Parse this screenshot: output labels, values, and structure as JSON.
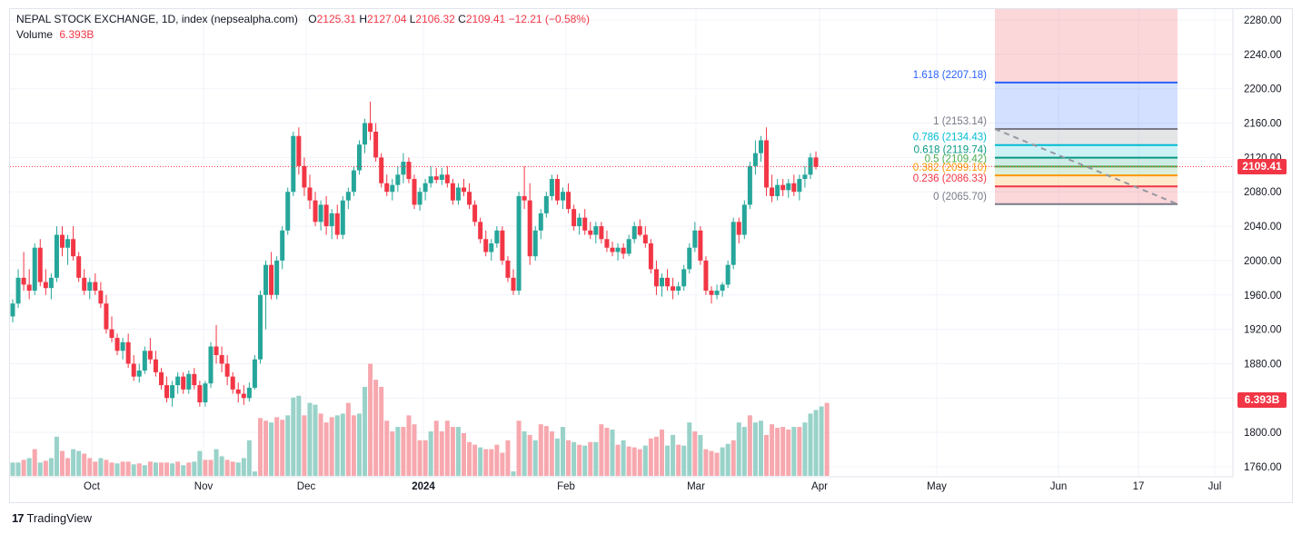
{
  "header": {
    "title": "NEPAL STOCK EXCHANGE, 1D, index (nepsealpha.com)",
    "ohlc": [
      {
        "key": "O",
        "value": "2125.31"
      },
      {
        "key": "H",
        "value": "2127.04"
      },
      {
        "key": "L",
        "value": "2106.32"
      },
      {
        "key": "C",
        "value": "2109.41"
      }
    ],
    "change": "−12.21 (−0.58%)",
    "volume_label": "Volume",
    "volume_value": "6.393B"
  },
  "badges": {
    "last_price": "2109.41",
    "volume": "6.393B"
  },
  "footer": {
    "brand_mark": "17",
    "brand": "TradingView"
  },
  "colors": {
    "up": "#26a69a",
    "down": "#f23645",
    "vol_up": "#99d2c9",
    "vol_down": "#f7a8ae",
    "grid": "#f0f3fa"
  },
  "chart_data": {
    "type": "candlestick",
    "title": "NEPAL STOCK EXCHANGE, 1D",
    "price_axis": {
      "ticks": [
        1760,
        1800,
        1840,
        1880,
        1920,
        1960,
        2000,
        2040,
        2080,
        2120,
        2160,
        2200,
        2240,
        2280
      ],
      "tick_labels": [
        "1760.00",
        "1800.00",
        "1840.00",
        "1880.00",
        "1920.00",
        "1960.00",
        "2000.00",
        "2040.00",
        "2080.00",
        "2120.00",
        "2160.00",
        "2200.00",
        "2240.00",
        "2280.00"
      ]
    },
    "time_axis": {
      "labels": [
        "Oct",
        "Nov",
        "Dec",
        "2024",
        "Feb",
        "Mar",
        "Apr",
        "May",
        "Jun",
        "17",
        "Jul"
      ],
      "bold": [
        false,
        false,
        false,
        true,
        false,
        false,
        false,
        false,
        false,
        false,
        false
      ]
    },
    "ohlc_series": [
      [
        1935,
        1955,
        1928,
        1950
      ],
      [
        1950,
        1990,
        1945,
        1980
      ],
      [
        1980,
        2010,
        1965,
        1972
      ],
      [
        1972,
        1990,
        1955,
        1965
      ],
      [
        1965,
        2020,
        1960,
        2015
      ],
      [
        2015,
        2025,
        1970,
        1975
      ],
      [
        1975,
        1990,
        1960,
        1968
      ],
      [
        1968,
        1985,
        1955,
        1980
      ],
      [
        1980,
        2040,
        1975,
        2030
      ],
      [
        2030,
        2040,
        2005,
        2015
      ],
      [
        2015,
        2030,
        1995,
        2025
      ],
      [
        2025,
        2040,
        2000,
        2005
      ],
      [
        2005,
        2010,
        1975,
        1980
      ],
      [
        1980,
        1990,
        1960,
        1965
      ],
      [
        1965,
        1980,
        1955,
        1975
      ],
      [
        1975,
        1985,
        1960,
        1965
      ],
      [
        1965,
        1975,
        1945,
        1950
      ],
      [
        1950,
        1960,
        1915,
        1920
      ],
      [
        1920,
        1935,
        1905,
        1910
      ],
      [
        1910,
        1915,
        1890,
        1895
      ],
      [
        1895,
        1910,
        1885,
        1905
      ],
      [
        1905,
        1915,
        1875,
        1880
      ],
      [
        1880,
        1890,
        1860,
        1865
      ],
      [
        1865,
        1880,
        1858,
        1872
      ],
      [
        1872,
        1900,
        1868,
        1895
      ],
      [
        1895,
        1910,
        1880,
        1885
      ],
      [
        1885,
        1895,
        1865,
        1870
      ],
      [
        1870,
        1875,
        1850,
        1855
      ],
      [
        1855,
        1865,
        1835,
        1840
      ],
      [
        1840,
        1860,
        1830,
        1855
      ],
      [
        1855,
        1870,
        1845,
        1865
      ],
      [
        1865,
        1870,
        1845,
        1850
      ],
      [
        1850,
        1872,
        1845,
        1868
      ],
      [
        1868,
        1875,
        1850,
        1855
      ],
      [
        1855,
        1860,
        1830,
        1835
      ],
      [
        1835,
        1860,
        1830,
        1857
      ],
      [
        1857,
        1905,
        1852,
        1900
      ],
      [
        1900,
        1925,
        1880,
        1890
      ],
      [
        1890,
        1900,
        1870,
        1880
      ],
      [
        1880,
        1890,
        1855,
        1865
      ],
      [
        1865,
        1870,
        1845,
        1850
      ],
      [
        1850,
        1858,
        1835,
        1845
      ],
      [
        1845,
        1855,
        1832,
        1840
      ],
      [
        1840,
        1858,
        1836,
        1852
      ],
      [
        1852,
        1890,
        1850,
        1885
      ],
      [
        1885,
        1965,
        1880,
        1960
      ],
      [
        1960,
        2000,
        1920,
        1995
      ],
      [
        1995,
        2010,
        1955,
        1960
      ],
      [
        1960,
        2005,
        1955,
        2000
      ],
      [
        2000,
        2040,
        1990,
        2035
      ],
      [
        2035,
        2085,
        2030,
        2080
      ],
      [
        2080,
        2150,
        2075,
        2145
      ],
      [
        2145,
        2155,
        2100,
        2110
      ],
      [
        2110,
        2120,
        2075,
        2085
      ],
      [
        2085,
        2100,
        2060,
        2070
      ],
      [
        2070,
        2080,
        2040,
        2045
      ],
      [
        2045,
        2070,
        2035,
        2065
      ],
      [
        2065,
        2075,
        2030,
        2040
      ],
      [
        2040,
        2060,
        2025,
        2055
      ],
      [
        2055,
        2065,
        2025,
        2030
      ],
      [
        2030,
        2075,
        2025,
        2070
      ],
      [
        2070,
        2085,
        2060,
        2080
      ],
      [
        2080,
        2110,
        2075,
        2105
      ],
      [
        2105,
        2140,
        2100,
        2135
      ],
      [
        2135,
        2165,
        2125,
        2160
      ],
      [
        2160,
        2185,
        2140,
        2150
      ],
      [
        2150,
        2160,
        2115,
        2120
      ],
      [
        2120,
        2125,
        2085,
        2090
      ],
      [
        2090,
        2100,
        2075,
        2080
      ],
      [
        2080,
        2095,
        2070,
        2088
      ],
      [
        2088,
        2110,
        2080,
        2100
      ],
      [
        2100,
        2125,
        2090,
        2115
      ],
      [
        2115,
        2120,
        2090,
        2095
      ],
      [
        2095,
        2100,
        2060,
        2065
      ],
      [
        2065,
        2085,
        2058,
        2080
      ],
      [
        2080,
        2095,
        2070,
        2090
      ],
      [
        2090,
        2110,
        2085,
        2098
      ],
      [
        2098,
        2108,
        2090,
        2094
      ],
      [
        2094,
        2108,
        2088,
        2100
      ],
      [
        2100,
        2110,
        2085,
        2090
      ],
      [
        2090,
        2095,
        2065,
        2070
      ],
      [
        2070,
        2090,
        2065,
        2085
      ],
      [
        2085,
        2095,
        2075,
        2080
      ],
      [
        2080,
        2090,
        2060,
        2065
      ],
      [
        2065,
        2070,
        2040,
        2045
      ],
      [
        2045,
        2050,
        2020,
        2025
      ],
      [
        2025,
        2035,
        2005,
        2010
      ],
      [
        2010,
        2025,
        2000,
        2020
      ],
      [
        2020,
        2040,
        2015,
        2035
      ],
      [
        2035,
        2040,
        1995,
        2000
      ],
      [
        2000,
        2005,
        1975,
        1980
      ],
      [
        1980,
        1990,
        1960,
        1965
      ],
      [
        1965,
        2080,
        1960,
        2075
      ],
      [
        2075,
        2110,
        2060,
        2070
      ],
      [
        2070,
        2090,
        1995,
        2005
      ],
      [
        2005,
        2040,
        2000,
        2035
      ],
      [
        2035,
        2060,
        2025,
        2055
      ],
      [
        2055,
        2080,
        2050,
        2075
      ],
      [
        2075,
        2100,
        2070,
        2095
      ],
      [
        2095,
        2100,
        2065,
        2070
      ],
      [
        2070,
        2085,
        2060,
        2080
      ],
      [
        2080,
        2090,
        2055,
        2060
      ],
      [
        2060,
        2065,
        2035,
        2040
      ],
      [
        2040,
        2055,
        2030,
        2050
      ],
      [
        2050,
        2060,
        2030,
        2035
      ],
      [
        2035,
        2045,
        2025,
        2030
      ],
      [
        2030,
        2045,
        2020,
        2040
      ],
      [
        2040,
        2045,
        2020,
        2025
      ],
      [
        2025,
        2035,
        2010,
        2015
      ],
      [
        2015,
        2022,
        2005,
        2010
      ],
      [
        2010,
        2020,
        2000,
        2015
      ],
      [
        2015,
        2020,
        2002,
        2008
      ],
      [
        2008,
        2030,
        2005,
        2025
      ],
      [
        2025,
        2045,
        2020,
        2040
      ],
      [
        2040,
        2048,
        2028,
        2030
      ],
      [
        2030,
        2040,
        2015,
        2020
      ],
      [
        2020,
        2025,
        1985,
        1990
      ],
      [
        1990,
        2000,
        1960,
        1970
      ],
      [
        1970,
        1985,
        1958,
        1980
      ],
      [
        1980,
        1990,
        1965,
        1970
      ],
      [
        1970,
        1980,
        1955,
        1965
      ],
      [
        1965,
        1975,
        1960,
        1970
      ],
      [
        1970,
        1995,
        1965,
        1990
      ],
      [
        1990,
        2020,
        1985,
        2015
      ],
      [
        2015,
        2045,
        2010,
        2035
      ],
      [
        2035,
        2040,
        1995,
        2000
      ],
      [
        2000,
        2005,
        1960,
        1965
      ],
      [
        1965,
        1970,
        1950,
        1960
      ],
      [
        1960,
        1972,
        1955,
        1965
      ],
      [
        1965,
        1975,
        1958,
        1972
      ],
      [
        1972,
        2000,
        1968,
        1995
      ],
      [
        1995,
        2050,
        1990,
        2045
      ],
      [
        2045,
        2050,
        2020,
        2030
      ],
      [
        2030,
        2070,
        2025,
        2065
      ],
      [
        2065,
        2115,
        2060,
        2110
      ],
      [
        2110,
        2140,
        2100,
        2125
      ],
      [
        2125,
        2145,
        2115,
        2140
      ],
      [
        2140,
        2155,
        2075,
        2085
      ],
      [
        2085,
        2100,
        2068,
        2075
      ],
      [
        2075,
        2095,
        2070,
        2088
      ],
      [
        2088,
        2095,
        2075,
        2082
      ],
      [
        2082,
        2095,
        2073,
        2090
      ],
      [
        2090,
        2100,
        2075,
        2080
      ],
      [
        2080,
        2100,
        2070,
        2095
      ],
      [
        2095,
        2110,
        2085,
        2100
      ],
      [
        2100,
        2125,
        2095,
        2120
      ],
      [
        2120,
        2127,
        2106,
        2109
      ]
    ],
    "volume_series": [
      [
        15,
        1
      ],
      [
        15,
        1
      ],
      [
        18,
        0
      ],
      [
        20,
        1
      ],
      [
        30,
        0
      ],
      [
        15,
        1
      ],
      [
        17,
        0
      ],
      [
        20,
        1
      ],
      [
        44,
        1
      ],
      [
        28,
        0
      ],
      [
        20,
        0
      ],
      [
        30,
        1
      ],
      [
        28,
        1
      ],
      [
        25,
        0
      ],
      [
        20,
        0
      ],
      [
        16,
        0
      ],
      [
        20,
        1
      ],
      [
        18,
        0
      ],
      [
        15,
        0
      ],
      [
        14,
        1
      ],
      [
        16,
        0
      ],
      [
        16,
        0
      ],
      [
        13,
        1
      ],
      [
        14,
        0
      ],
      [
        12,
        1
      ],
      [
        16,
        0
      ],
      [
        15,
        1
      ],
      [
        15,
        0
      ],
      [
        15,
        0
      ],
      [
        14,
        1
      ],
      [
        16,
        0
      ],
      [
        12,
        1
      ],
      [
        15,
        0
      ],
      [
        16,
        1
      ],
      [
        28,
        1
      ],
      [
        18,
        0
      ],
      [
        18,
        0
      ],
      [
        30,
        1
      ],
      [
        22,
        1
      ],
      [
        18,
        0
      ],
      [
        16,
        0
      ],
      [
        15,
        1
      ],
      [
        20,
        1
      ],
      [
        40,
        1
      ],
      [
        5,
        1
      ],
      [
        65,
        0
      ],
      [
        62,
        0
      ],
      [
        60,
        1
      ],
      [
        66,
        0
      ],
      [
        63,
        0
      ],
      [
        68,
        1
      ],
      [
        88,
        1
      ],
      [
        90,
        1
      ],
      [
        68,
        0
      ],
      [
        82,
        1
      ],
      [
        80,
        1
      ],
      [
        70,
        0
      ],
      [
        60,
        0
      ],
      [
        66,
        0
      ],
      [
        68,
        1
      ],
      [
        70,
        1
      ],
      [
        82,
        0
      ],
      [
        68,
        0
      ],
      [
        70,
        1
      ],
      [
        100,
        1
      ],
      [
        126,
        0
      ],
      [
        108,
        0
      ],
      [
        100,
        0
      ],
      [
        62,
        0
      ],
      [
        50,
        0
      ],
      [
        55,
        1
      ],
      [
        55,
        0
      ],
      [
        68,
        0
      ],
      [
        58,
        0
      ],
      [
        40,
        0
      ],
      [
        40,
        0
      ],
      [
        50,
        1
      ],
      [
        62,
        0
      ],
      [
        50,
        0
      ],
      [
        62,
        0
      ],
      [
        55,
        0
      ],
      [
        55,
        1
      ],
      [
        48,
        0
      ],
      [
        38,
        0
      ],
      [
        35,
        0
      ],
      [
        32,
        1
      ],
      [
        30,
        0
      ],
      [
        30,
        0
      ],
      [
        35,
        0
      ],
      [
        26,
        0
      ],
      [
        40,
        0
      ],
      [
        5,
        1
      ],
      [
        62,
        0
      ],
      [
        50,
        1
      ],
      [
        46,
        0
      ],
      [
        40,
        1
      ],
      [
        58,
        0
      ],
      [
        56,
        0
      ],
      [
        50,
        0
      ],
      [
        42,
        1
      ],
      [
        55,
        1
      ],
      [
        40,
        0
      ],
      [
        38,
        1
      ],
      [
        35,
        0
      ],
      [
        34,
        1
      ],
      [
        38,
        0
      ],
      [
        38,
        1
      ],
      [
        58,
        0
      ],
      [
        54,
        0
      ],
      [
        52,
        1
      ],
      [
        35,
        0
      ],
      [
        40,
        1
      ],
      [
        33,
        0
      ],
      [
        32,
        0
      ],
      [
        30,
        0
      ],
      [
        34,
        1
      ],
      [
        42,
        0
      ],
      [
        44,
        0
      ],
      [
        52,
        0
      ],
      [
        34,
        1
      ],
      [
        46,
        1
      ],
      [
        35,
        0
      ],
      [
        34,
        1
      ],
      [
        60,
        1
      ],
      [
        50,
        0
      ],
      [
        46,
        1
      ],
      [
        30,
        0
      ],
      [
        28,
        0
      ],
      [
        26,
        0
      ],
      [
        32,
        1
      ],
      [
        36,
        1
      ],
      [
        40,
        0
      ],
      [
        60,
        1
      ],
      [
        55,
        1
      ],
      [
        68,
        0
      ],
      [
        60,
        1
      ],
      [
        62,
        1
      ],
      [
        46,
        0
      ],
      [
        58,
        0
      ],
      [
        54,
        0
      ],
      [
        55,
        0
      ],
      [
        52,
        0
      ],
      [
        55,
        1
      ],
      [
        55,
        0
      ],
      [
        60,
        1
      ],
      [
        70,
        1
      ],
      [
        74,
        1
      ],
      [
        78,
        1
      ],
      [
        82,
        0
      ]
    ],
    "volume_max_label": "6.393B",
    "fibonacci": [
      {
        "ratio": "1.618",
        "value": 2207.18,
        "label": "1.618 (2207.18)",
        "color": "#2962ff"
      },
      {
        "ratio": "1",
        "value": 2153.14,
        "label": "1 (2153.14)",
        "color": "#787b86"
      },
      {
        "ratio": "0.786",
        "value": 2134.43,
        "label": "0.786 (2134.43)",
        "color": "#00bcd4"
      },
      {
        "ratio": "0.618",
        "value": 2119.74,
        "label": "0.618 (2119.74)",
        "color": "#089981"
      },
      {
        "ratio": "0.5",
        "value": 2109.42,
        "label": "0.5 (2109.42)",
        "color": "#4caf50"
      },
      {
        "ratio": "0.382",
        "value": 2099.1,
        "label": "0.382 (2099.10)",
        "color": "#ff9800"
      },
      {
        "ratio": "0.236",
        "value": 2086.33,
        "label": "0.236 (2086.33)",
        "color": "#f23645"
      },
      {
        "ratio": "0",
        "value": 2065.7,
        "label": "0 (2065.70)",
        "color": "#787b86"
      }
    ],
    "last_price": 2109.41
  }
}
